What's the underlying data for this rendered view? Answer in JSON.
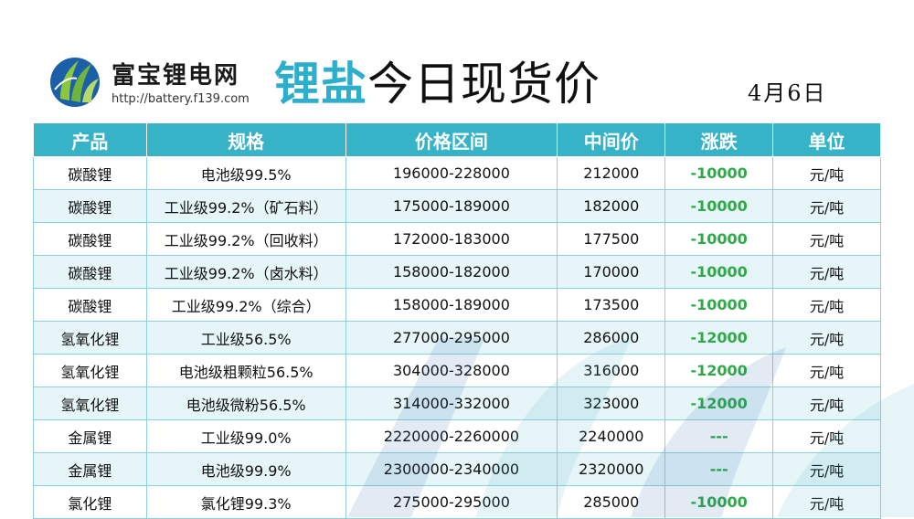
{
  "header": {
    "brand_name": "富宝锂电网",
    "brand_url": "http://battery.f139.com",
    "title_accent": "锂盐",
    "title_main": "今日现货价",
    "date": "4月6日"
  },
  "colors": {
    "accent": "#2eaecb",
    "header_bg": "#36b3c6",
    "stripe": "#e6f5f8",
    "change_green": "#2fa84a"
  },
  "table": {
    "columns": [
      "产品",
      "规格",
      "价格区间",
      "中间价",
      "涨跌",
      "单位"
    ],
    "rows": [
      {
        "product": "碳酸锂",
        "spec": "电池级99.5%",
        "range": "196000-228000",
        "mid": "212000",
        "change": "-10000",
        "unit": "元/吨"
      },
      {
        "product": "碳酸锂",
        "spec": "工业级99.2%（矿石料）",
        "range": "175000-189000",
        "mid": "182000",
        "change": "-10000",
        "unit": "元/吨"
      },
      {
        "product": "碳酸锂",
        "spec": "工业级99.2%（回收料）",
        "range": "172000-183000",
        "mid": "177500",
        "change": "-10000",
        "unit": "元/吨"
      },
      {
        "product": "碳酸锂",
        "spec": "工业级99.2%（卤水料）",
        "range": "158000-182000",
        "mid": "170000",
        "change": "-10000",
        "unit": "元/吨"
      },
      {
        "product": "碳酸锂",
        "spec": "工业级99.2%（综合）",
        "range": "158000-189000",
        "mid": "173500",
        "change": "-10000",
        "unit": "元/吨"
      },
      {
        "product": "氢氧化锂",
        "spec": "工业级56.5%",
        "range": "277000-295000",
        "mid": "286000",
        "change": "-12000",
        "unit": "元/吨"
      },
      {
        "product": "氢氧化锂",
        "spec": "电池级粗颗粒56.5%",
        "range": "304000-328000",
        "mid": "316000",
        "change": "-12000",
        "unit": "元/吨"
      },
      {
        "product": "氢氧化锂",
        "spec": "电池级微粉56.5%",
        "range": "314000-332000",
        "mid": "323000",
        "change": "-12000",
        "unit": "元/吨"
      },
      {
        "product": "金属锂",
        "spec": "工业级99.0%",
        "range": "2220000-2260000",
        "mid": "2240000",
        "change": "---",
        "unit": "元/吨"
      },
      {
        "product": "金属锂",
        "spec": "电池级99.9%",
        "range": "2300000-2340000",
        "mid": "2320000",
        "change": "---",
        "unit": "元/吨"
      },
      {
        "product": "氯化锂",
        "spec": "氯化锂99.3%",
        "range": "275000-295000",
        "mid": "285000",
        "change": "-10000",
        "unit": "元/吨"
      }
    ]
  },
  "logo_icon": "leaf-logo-icon"
}
